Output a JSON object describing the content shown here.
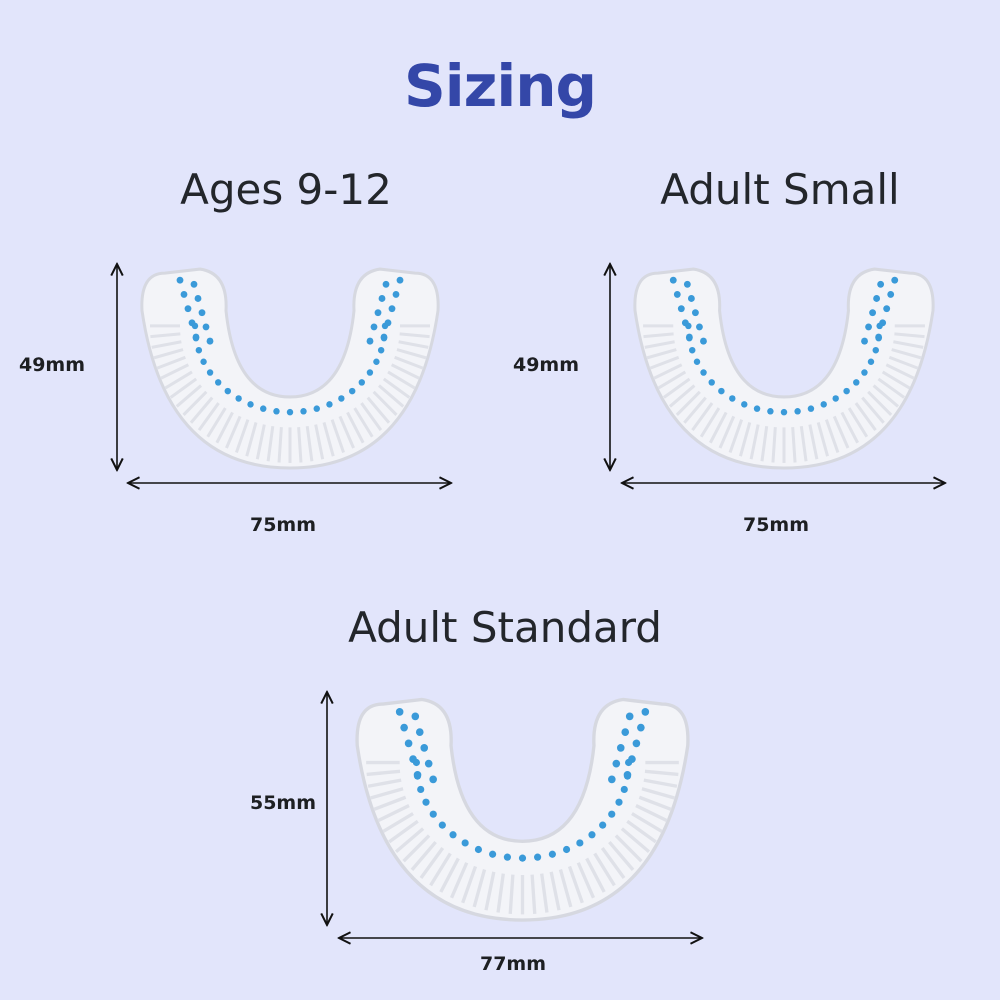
{
  "title": "Sizing",
  "colors": {
    "background": "#e2e5fb",
    "title": "#3447a8",
    "text": "#23262b",
    "bristle_dots": "#3a9ad9"
  },
  "sizes": [
    {
      "name": "Ages 9-12",
      "height": "49mm",
      "width": "75mm"
    },
    {
      "name": "Adult Small",
      "height": "49mm",
      "width": "75mm"
    },
    {
      "name": "Adult Standard",
      "height": "55mm",
      "width": "77mm"
    }
  ]
}
